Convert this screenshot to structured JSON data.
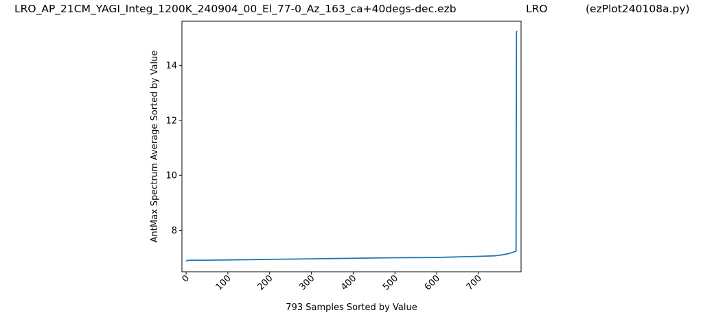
{
  "header": {
    "filename": "LRO_AP_21CM_YAGI_Integ_1200K_240904_00_El_77-0_Az_163_ca+40degs-dec.ezb",
    "station": "LRO",
    "program": "(ezPlot240108a.py)"
  },
  "chart_data": {
    "type": "line",
    "xlabel": "793 Samples Sorted by Value",
    "ylabel": "AntMax Spectrum Average Sorted by Value",
    "xlim": [
      -10,
      802
    ],
    "ylim": [
      6.5,
      15.6
    ],
    "xticks": [
      0,
      100,
      200,
      300,
      400,
      500,
      600,
      700
    ],
    "yticks": [
      8,
      10,
      12,
      14
    ],
    "grid": false,
    "line_color": "#1f77b4",
    "series": [
      {
        "x": [
          0,
          3,
          10,
          50,
          100,
          150,
          200,
          250,
          300,
          350,
          400,
          450,
          500,
          550,
          600,
          625,
          650,
          700,
          740,
          760,
          775,
          785,
          788,
          790,
          791,
          792
        ],
        "values": [
          6.88,
          6.91,
          6.92,
          6.92,
          6.93,
          6.94,
          6.95,
          6.96,
          6.97,
          6.98,
          6.99,
          7.0,
          7.01,
          7.015,
          7.02,
          7.03,
          7.04,
          7.06,
          7.08,
          7.12,
          7.17,
          7.22,
          7.24,
          7.25,
          15.2,
          15.25
        ]
      }
    ]
  }
}
